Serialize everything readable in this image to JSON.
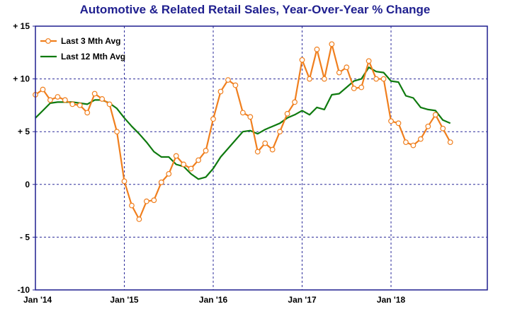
{
  "chart_data": {
    "type": "line",
    "title": "Automotive & Related Retail Sales, Year-Over-Year % Change",
    "xlabel": "",
    "ylabel": "",
    "ylim": [
      -10,
      15
    ],
    "yticks": [
      {
        "value": 15,
        "label": "+ 15"
      },
      {
        "value": 10,
        "label": "+ 10"
      },
      {
        "value": 5,
        "label": "+ 5"
      },
      {
        "value": 0,
        "label": "0"
      },
      {
        "value": -5,
        "label": "- 5"
      },
      {
        "value": -10,
        "label": "-10"
      }
    ],
    "xrange": [
      "2014-01",
      "2019-02"
    ],
    "xticks": [
      {
        "value": "2014-01",
        "label": "Jan '14"
      },
      {
        "value": "2015-01",
        "label": "Jan '15"
      },
      {
        "value": "2016-01",
        "label": "Jan '16"
      },
      {
        "value": "2017-01",
        "label": "Jan '17"
      },
      {
        "value": "2018-01",
        "label": "Jan '18"
      }
    ],
    "grid": true,
    "legend_position": "top-left",
    "series": [
      {
        "name": "Last 3 Mth Avg",
        "color": "#f07f1e",
        "marker": "circle",
        "points": [
          [
            "2014-01",
            8.5
          ],
          [
            "2014-02",
            9.0
          ],
          [
            "2014-03",
            8.0
          ],
          [
            "2014-04",
            8.3
          ],
          [
            "2014-05",
            8.0
          ],
          [
            "2014-06",
            7.6
          ],
          [
            "2014-07",
            7.5
          ],
          [
            "2014-08",
            6.8
          ],
          [
            "2014-09",
            8.6
          ],
          [
            "2014-10",
            8.1
          ],
          [
            "2014-11",
            7.6
          ],
          [
            "2014-12",
            5.0
          ],
          [
            "2015-01",
            0.3
          ],
          [
            "2015-02",
            -2.0
          ],
          [
            "2015-03",
            -3.3
          ],
          [
            "2015-04",
            -1.6
          ],
          [
            "2015-05",
            -1.5
          ],
          [
            "2015-06",
            0.2
          ],
          [
            "2015-07",
            1.0
          ],
          [
            "2015-08",
            2.7
          ],
          [
            "2015-09",
            1.9
          ],
          [
            "2015-10",
            1.5
          ],
          [
            "2015-11",
            2.3
          ],
          [
            "2015-12",
            3.2
          ],
          [
            "2016-01",
            6.2
          ],
          [
            "2016-02",
            8.8
          ],
          [
            "2016-03",
            9.9
          ],
          [
            "2016-04",
            9.4
          ],
          [
            "2016-05",
            6.8
          ],
          [
            "2016-06",
            6.4
          ],
          [
            "2016-07",
            3.1
          ],
          [
            "2016-08",
            3.9
          ],
          [
            "2016-09",
            3.3
          ],
          [
            "2016-10",
            5.0
          ],
          [
            "2016-11",
            6.7
          ],
          [
            "2016-12",
            7.8
          ],
          [
            "2017-01",
            11.8
          ],
          [
            "2017-02",
            10.0
          ],
          [
            "2017-03",
            12.8
          ],
          [
            "2017-04",
            10.0
          ],
          [
            "2017-05",
            13.3
          ],
          [
            "2017-06",
            10.6
          ],
          [
            "2017-07",
            11.1
          ],
          [
            "2017-08",
            9.1
          ],
          [
            "2017-09",
            9.2
          ],
          [
            "2017-10",
            11.7
          ],
          [
            "2017-11",
            10.0
          ],
          [
            "2017-12",
            10.0
          ],
          [
            "2018-01",
            6.0
          ],
          [
            "2018-02",
            5.8
          ],
          [
            "2018-03",
            4.0
          ],
          [
            "2018-04",
            3.7
          ],
          [
            "2018-05",
            4.3
          ],
          [
            "2018-06",
            5.5
          ],
          [
            "2018-07",
            6.6
          ],
          [
            "2018-08",
            5.3
          ],
          [
            "2018-09",
            4.0
          ]
        ]
      },
      {
        "name": "Last 12 Mth Avg",
        "color": "#0f7a0f",
        "marker": "none",
        "points": [
          [
            "2014-01",
            6.3
          ],
          [
            "2014-02",
            7.0
          ],
          [
            "2014-03",
            7.7
          ],
          [
            "2014-04",
            7.8
          ],
          [
            "2014-05",
            7.8
          ],
          [
            "2014-06",
            7.8
          ],
          [
            "2014-07",
            7.7
          ],
          [
            "2014-08",
            7.6
          ],
          [
            "2014-09",
            8.0
          ],
          [
            "2014-10",
            8.0
          ],
          [
            "2014-11",
            7.7
          ],
          [
            "2014-12",
            7.2
          ],
          [
            "2015-01",
            6.3
          ],
          [
            "2015-02",
            5.5
          ],
          [
            "2015-03",
            4.8
          ],
          [
            "2015-04",
            4.0
          ],
          [
            "2015-05",
            3.1
          ],
          [
            "2015-06",
            2.6
          ],
          [
            "2015-07",
            2.6
          ],
          [
            "2015-08",
            1.9
          ],
          [
            "2015-09",
            1.7
          ],
          [
            "2015-10",
            1.0
          ],
          [
            "2015-11",
            0.5
          ],
          [
            "2015-12",
            0.7
          ],
          [
            "2016-01",
            1.5
          ],
          [
            "2016-02",
            2.6
          ],
          [
            "2016-03",
            3.4
          ],
          [
            "2016-04",
            4.2
          ],
          [
            "2016-05",
            5.0
          ],
          [
            "2016-06",
            5.1
          ],
          [
            "2016-07",
            4.8
          ],
          [
            "2016-08",
            5.2
          ],
          [
            "2016-09",
            5.5
          ],
          [
            "2016-10",
            5.8
          ],
          [
            "2016-11",
            6.3
          ],
          [
            "2016-12",
            6.6
          ],
          [
            "2017-01",
            7.0
          ],
          [
            "2017-02",
            6.6
          ],
          [
            "2017-03",
            7.3
          ],
          [
            "2017-04",
            7.1
          ],
          [
            "2017-05",
            8.5
          ],
          [
            "2017-06",
            8.6
          ],
          [
            "2017-07",
            9.2
          ],
          [
            "2017-08",
            9.8
          ],
          [
            "2017-09",
            10.0
          ],
          [
            "2017-10",
            11.1
          ],
          [
            "2017-11",
            10.7
          ],
          [
            "2017-12",
            10.6
          ],
          [
            "2018-01",
            9.8
          ],
          [
            "2018-02",
            9.7
          ],
          [
            "2018-03",
            8.4
          ],
          [
            "2018-04",
            8.2
          ],
          [
            "2018-05",
            7.3
          ],
          [
            "2018-06",
            7.1
          ],
          [
            "2018-07",
            7.0
          ],
          [
            "2018-08",
            6.1
          ],
          [
            "2018-09",
            5.8
          ]
        ]
      }
    ]
  }
}
